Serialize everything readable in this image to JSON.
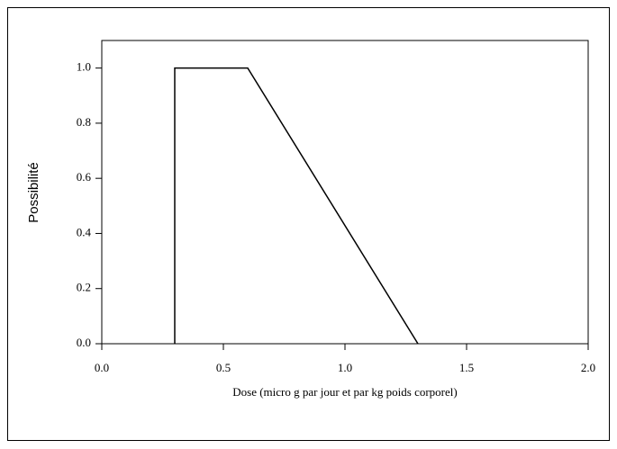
{
  "chart_data": {
    "type": "line",
    "x_label": "Dose (micro g par jour et par kg poids corporel)",
    "y_label": "Possibilité",
    "x": [
      0.3,
      0.3,
      0.6,
      1.3
    ],
    "series": [
      {
        "color": "#000000",
        "values": [
          0,
          1,
          1,
          0
        ]
      }
    ],
    "xlim": [
      0,
      2
    ],
    "ylim": [
      0,
      1.1
    ],
    "xticks": [
      {
        "value": 0,
        "label": "0.0"
      },
      {
        "value": 0.5,
        "label": "0.5"
      },
      {
        "value": 1,
        "label": "1.0"
      },
      {
        "value": 1.5,
        "label": "1.5"
      },
      {
        "value": 2,
        "label": "2.0"
      }
    ],
    "yticks": [
      {
        "value": 0,
        "label": "0.0"
      },
      {
        "value": 0.2,
        "label": "0.2"
      },
      {
        "value": 0.4,
        "label": "0.4"
      },
      {
        "value": 0.6,
        "label": "0.6"
      },
      {
        "value": 0.8,
        "label": "0.8"
      },
      {
        "value": 1,
        "label": "1.0"
      }
    ],
    "grid": false
  }
}
